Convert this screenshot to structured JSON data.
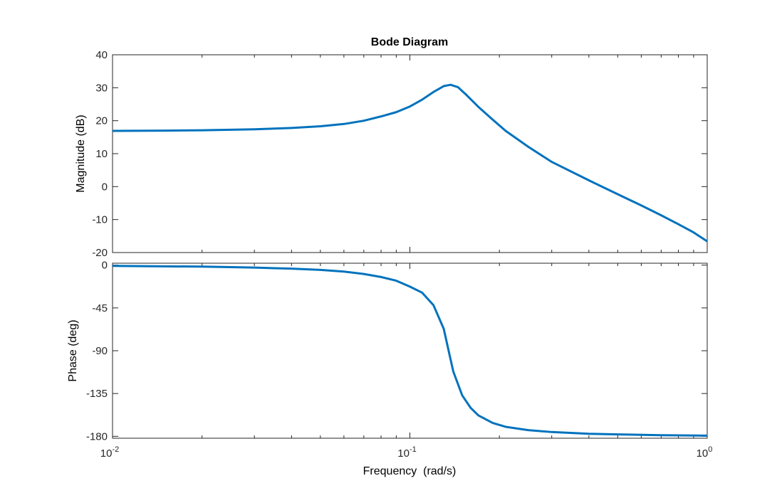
{
  "chart_data": {
    "type": "line",
    "title": "Bode Diagram",
    "xlabel": "Frequency  (rad/s)",
    "x_scale": "log",
    "xlim": [
      0.01,
      1
    ],
    "x_ticks": [
      {
        "base": "10",
        "exp": "-2"
      },
      {
        "base": "10",
        "exp": "-1"
      },
      {
        "base": "10",
        "exp": "0"
      }
    ],
    "line_color": "#0072BD",
    "grid": false,
    "panels": [
      {
        "name": "magnitude",
        "ylabel": "Magnitude (dB)",
        "ylim": [
          -20,
          40
        ],
        "yticks": [
          40,
          30,
          20,
          10,
          0,
          -10,
          -20
        ],
        "ytick_labels": [
          "40",
          "30",
          "20",
          "10",
          "0",
          "-10",
          "-20"
        ],
        "points": [
          [
            0.01,
            16.9
          ],
          [
            0.015,
            17.0
          ],
          [
            0.02,
            17.1
          ],
          [
            0.03,
            17.4
          ],
          [
            0.04,
            17.8
          ],
          [
            0.05,
            18.3
          ],
          [
            0.06,
            19.0
          ],
          [
            0.07,
            20.0
          ],
          [
            0.08,
            21.3
          ],
          [
            0.09,
            22.6
          ],
          [
            0.1,
            24.3
          ],
          [
            0.11,
            26.4
          ],
          [
            0.12,
            28.7
          ],
          [
            0.13,
            30.5
          ],
          [
            0.137,
            30.9
          ],
          [
            0.145,
            30.2
          ],
          [
            0.155,
            27.8
          ],
          [
            0.17,
            24.2
          ],
          [
            0.19,
            20.3
          ],
          [
            0.21,
            16.9
          ],
          [
            0.25,
            12.1
          ],
          [
            0.3,
            7.5
          ],
          [
            0.4,
            1.9
          ],
          [
            0.5,
            -2.3
          ],
          [
            0.6,
            -5.7
          ],
          [
            0.7,
            -8.7
          ],
          [
            0.8,
            -11.4
          ],
          [
            0.9,
            -13.9
          ],
          [
            1.0,
            -16.6
          ]
        ]
      },
      {
        "name": "phase",
        "ylabel": "Phase (deg)",
        "ylim": [
          -182,
          2
        ],
        "yticks": [
          0,
          -45,
          -90,
          -135,
          -180
        ],
        "ytick_labels": [
          "0",
          "-45",
          "-90",
          "-135",
          "-180"
        ],
        "points": [
          [
            0.01,
            -0.8
          ],
          [
            0.02,
            -1.6
          ],
          [
            0.03,
            -2.6
          ],
          [
            0.04,
            -3.7
          ],
          [
            0.05,
            -5.0
          ],
          [
            0.06,
            -6.8
          ],
          [
            0.07,
            -9.3
          ],
          [
            0.08,
            -12.5
          ],
          [
            0.09,
            -16.4
          ],
          [
            0.1,
            -22.6
          ],
          [
            0.11,
            -29.0
          ],
          [
            0.12,
            -42.0
          ],
          [
            0.13,
            -67.0
          ],
          [
            0.135,
            -90.0
          ],
          [
            0.14,
            -112.0
          ],
          [
            0.15,
            -137.0
          ],
          [
            0.16,
            -150.0
          ],
          [
            0.17,
            -158.0
          ],
          [
            0.19,
            -166.0
          ],
          [
            0.21,
            -170.0
          ],
          [
            0.25,
            -173.5
          ],
          [
            0.3,
            -175.5
          ],
          [
            0.4,
            -177.3
          ],
          [
            0.5,
            -178.0
          ],
          [
            0.7,
            -178.8
          ],
          [
            1.0,
            -179.3
          ]
        ]
      }
    ]
  }
}
